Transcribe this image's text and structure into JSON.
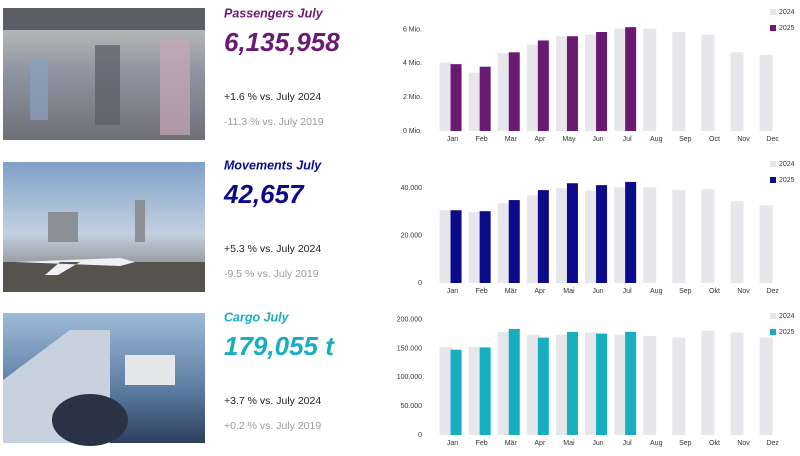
{
  "chart_data": [
    {
      "type": "bar",
      "title": "Passengers July",
      "kpi": "6,135,958",
      "change_prev_year": "+1.6 % vs. July 2024",
      "change_2019": "-11.3 % vs. July 2019",
      "categories": [
        "Jan",
        "Feb",
        "Mar",
        "Apr",
        "May",
        "Jun",
        "Jul",
        "Aug",
        "Sep",
        "Oct",
        "Nov",
        "Dec"
      ],
      "series": [
        {
          "name": "2024",
          "color": "#e6e6eb",
          "values": [
            4050000,
            3450000,
            4600000,
            5100000,
            5600000,
            5700000,
            6050000,
            6050000,
            5850000,
            5700000,
            4650000,
            4500000
          ]
        },
        {
          "name": "2025",
          "color": "#6b1a72",
          "values": [
            3950000,
            3800000,
            4650000,
            5350000,
            5600000,
            5850000,
            6135958,
            null,
            null,
            null,
            null,
            null
          ]
        }
      ],
      "ylim": [
        0,
        6500000
      ],
      "yticks": [
        {
          "value": 0,
          "label": "0 Mio."
        },
        {
          "value": 2000000,
          "label": "2 Mio."
        },
        {
          "value": 4000000,
          "label": "4 Mio."
        },
        {
          "value": 6000000,
          "label": "6 Mio."
        }
      ],
      "legend": "top-right"
    },
    {
      "type": "bar",
      "title": "Movements July",
      "kpi": "42,657",
      "change_prev_year": "+5.3 % vs. July 2024",
      "change_2019": "-9.5 % vs. July 2019",
      "categories": [
        "Jan",
        "Feb",
        "Mär",
        "Apr",
        "Mai",
        "Jun",
        "Jul",
        "Aug",
        "Sep",
        "Okt",
        "Nov",
        "Dez"
      ],
      "series": [
        {
          "name": "2024",
          "color": "#e6e6eb",
          "values": [
            30700,
            29900,
            33700,
            37000,
            40000,
            39000,
            40400,
            40400,
            39200,
            39600,
            34500,
            32800
          ]
        },
        {
          "name": "2025",
          "color": "#0a0a8a",
          "values": [
            30700,
            30300,
            35000,
            39200,
            42100,
            41300,
            42657,
            null,
            null,
            null,
            null,
            null
          ]
        }
      ],
      "ylim": [
        0,
        46000
      ],
      "yticks": [
        0,
        {
          "value": 20000,
          "label": "20.000"
        },
        {
          "value": 40000,
          "label": "40.000"
        }
      ],
      "legend": "top-right"
    },
    {
      "type": "bar",
      "title": "Cargo July",
      "kpi": "179,055 t",
      "change_prev_year": "+3.7 % vs. July 2024",
      "change_2019": "+0.2 % vs. July 2019",
      "categories": [
        "Jan",
        "Feb",
        "Mär",
        "Apr",
        "Mai",
        "Jun",
        "Jul",
        "Aug",
        "Sep",
        "Okt",
        "Nov",
        "Dez"
      ],
      "series": [
        {
          "name": "2024",
          "color": "#e6e6eb",
          "values": [
            153000,
            153000,
            179000,
            174000,
            174000,
            178000,
            174000,
            172000,
            169000,
            181000,
            178000,
            169000
          ]
        },
        {
          "name": "2025",
          "color": "#17aec0",
          "values": [
            148000,
            152000,
            184000,
            169000,
            179000,
            176000,
            179055,
            null,
            null,
            null,
            null,
            null
          ]
        }
      ],
      "ylim": [
        0,
        210000
      ],
      "yticks": [
        0,
        {
          "value": 50000,
          "label": "50.000"
        },
        {
          "value": 100000,
          "label": "100.000"
        },
        {
          "value": 150000,
          "label": "150.000"
        },
        {
          "value": 200000,
          "label": "200.000"
        }
      ],
      "legend": "top-right"
    }
  ]
}
